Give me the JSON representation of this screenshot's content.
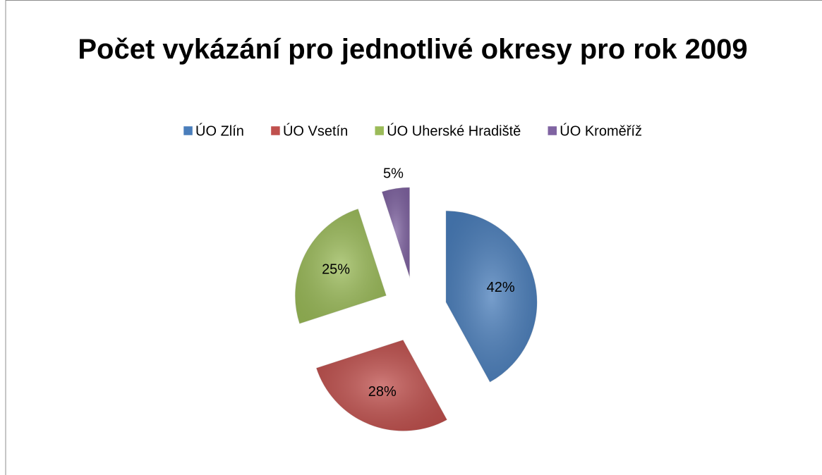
{
  "chart_data": {
    "type": "pie",
    "title": "Počet vykázání pro jednotlivé okresy pro rok 2009",
    "categories": [
      "ÚO Zlín",
      "ÚO Vsetín",
      "ÚO Uherské Hradiště",
      "ÚO Kroměříž"
    ],
    "values": [
      42,
      28,
      25,
      5
    ],
    "value_labels": [
      "42%",
      "28%",
      "25%",
      "5%"
    ],
    "colors": [
      "#4a7ebb",
      "#c0504d",
      "#9bbb59",
      "#8064a2"
    ],
    "legend": "top"
  }
}
